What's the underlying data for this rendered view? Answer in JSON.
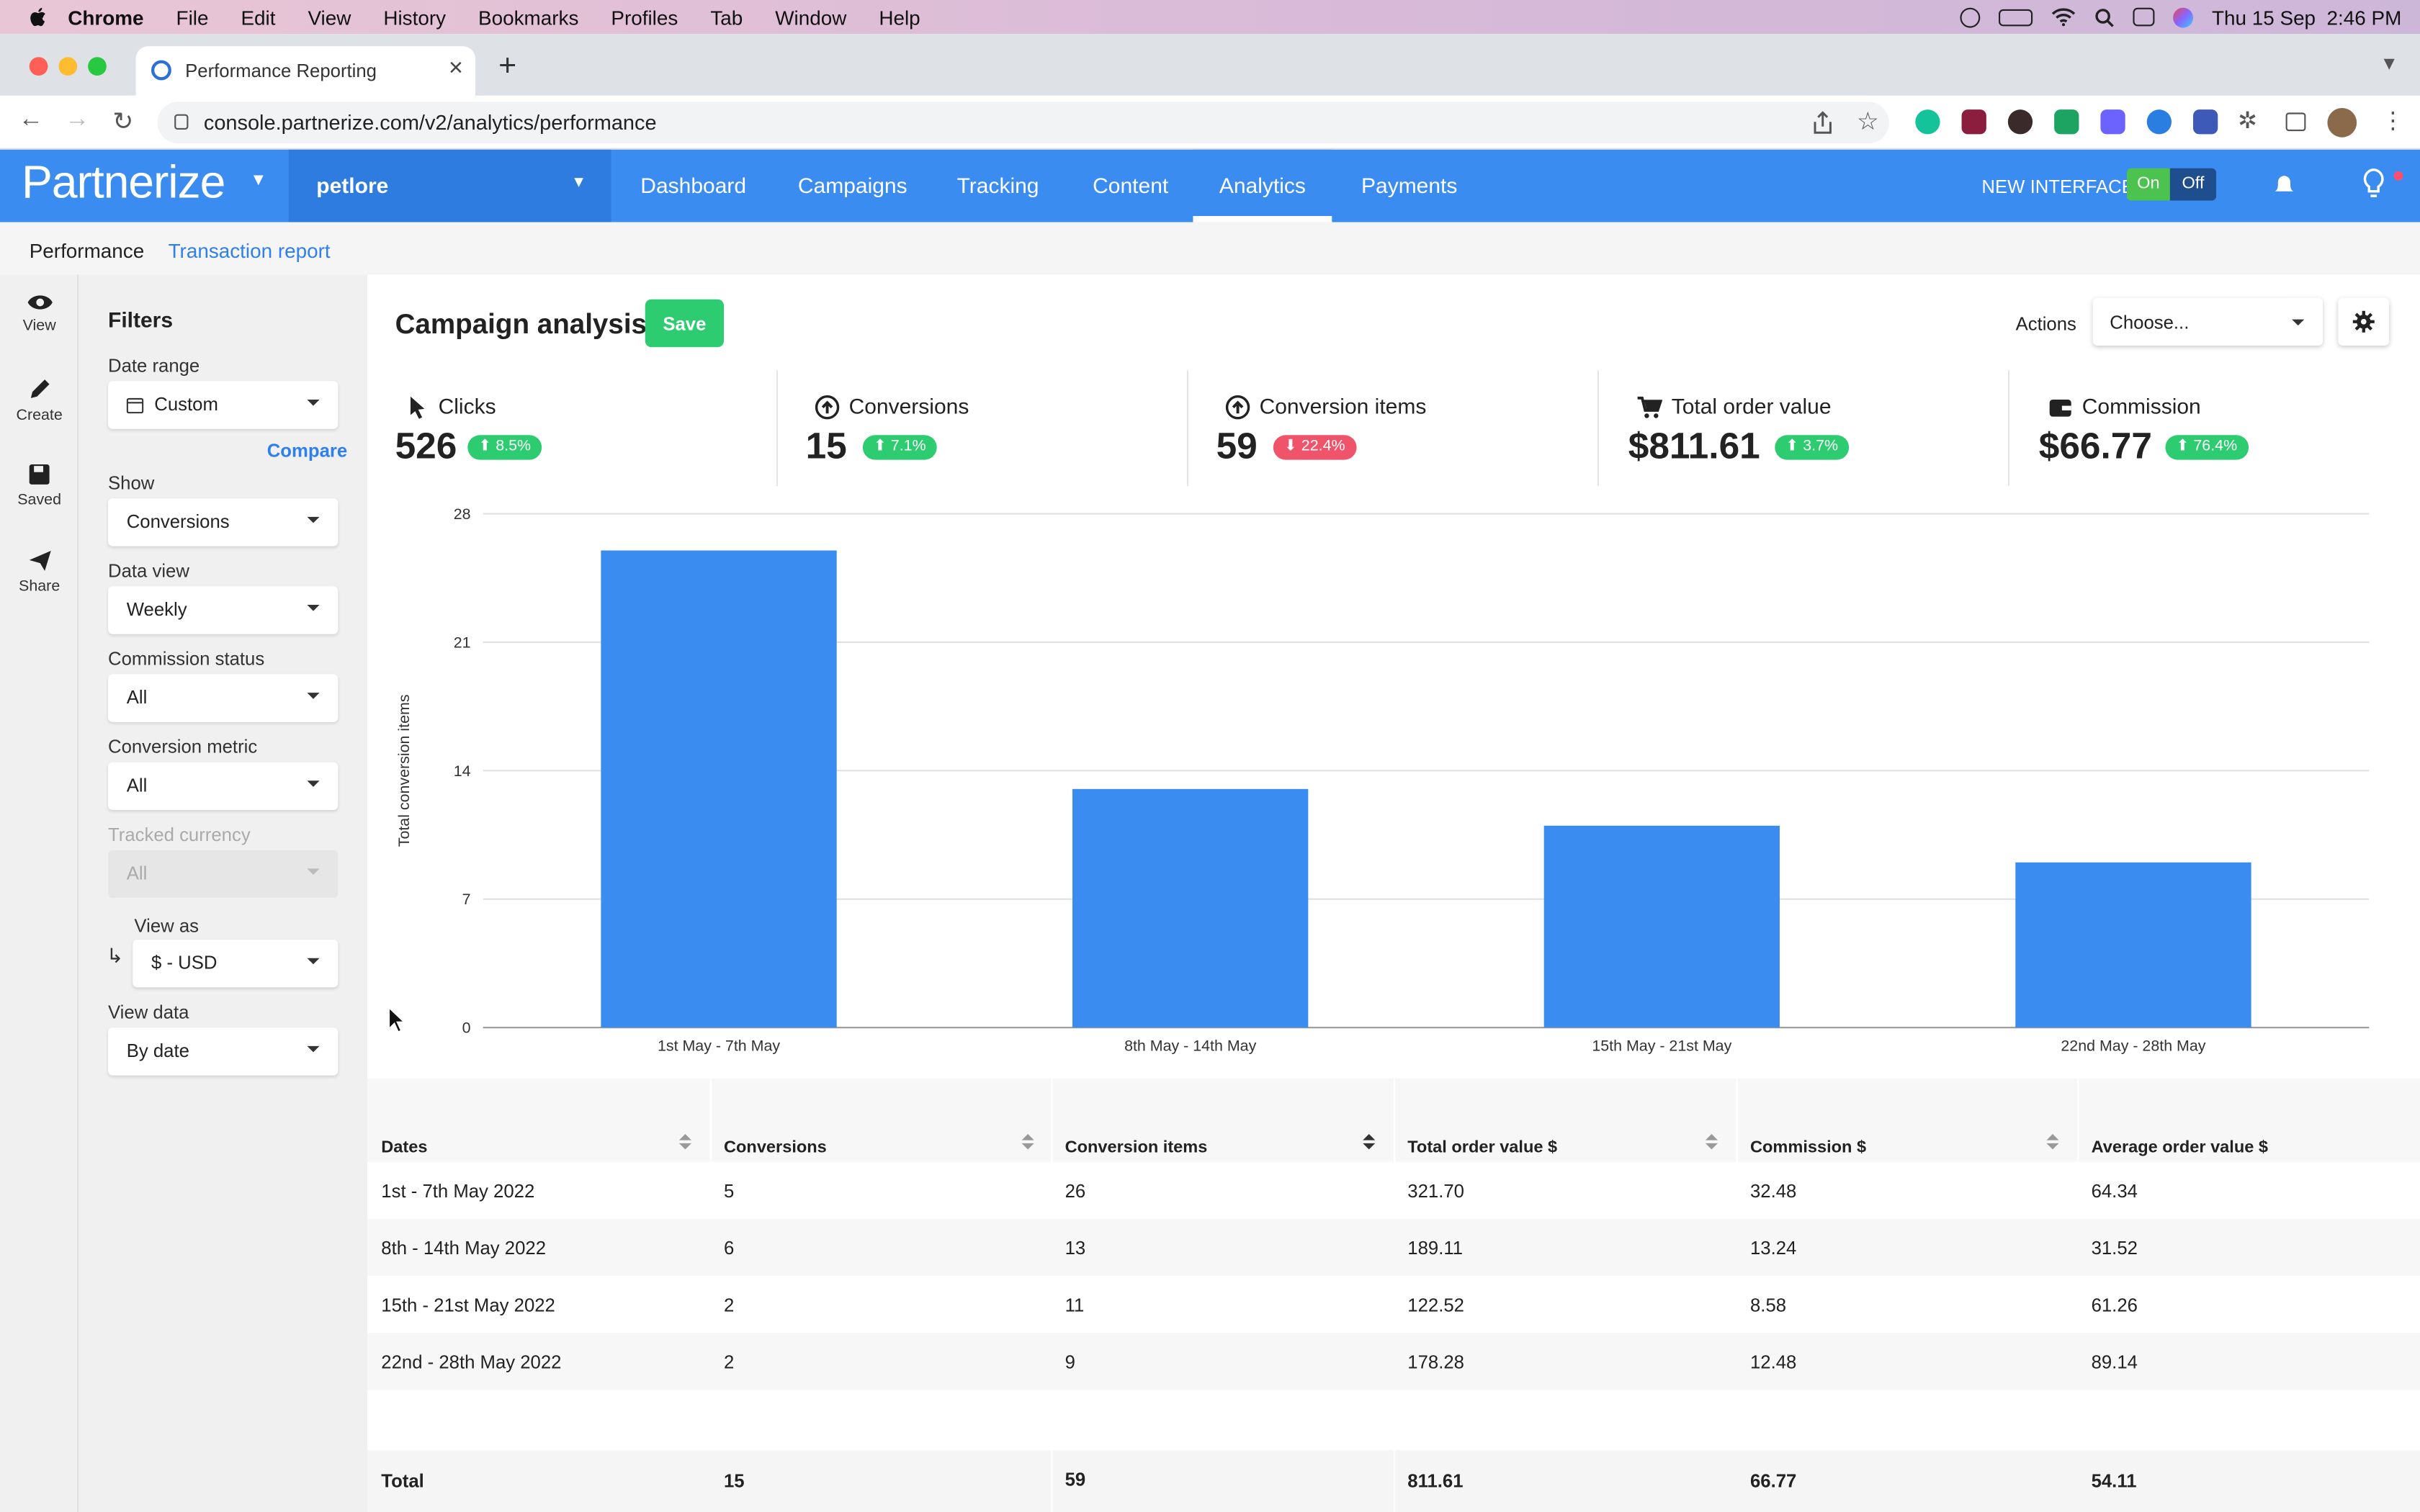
{
  "menubar": {
    "app": "Chrome",
    "items": [
      "File",
      "Edit",
      "View",
      "History",
      "Bookmarks",
      "Profiles",
      "Tab",
      "Window",
      "Help"
    ],
    "clock": "Thu 15 Sep  2:46 PM"
  },
  "browser": {
    "tab_title": "Performance Reporting",
    "url": "console.partnerize.com/v2/analytics/performance"
  },
  "app_header": {
    "logo": "Partnerize",
    "account": "petlore",
    "nav": [
      "Dashboard",
      "Campaigns",
      "Tracking",
      "Content",
      "Analytics",
      "Payments"
    ],
    "active_nav": "Analytics",
    "new_interface_label": "NEW INTERFACE",
    "toggle_on": "On",
    "toggle_off": "Off"
  },
  "subnav": {
    "performance": "Performance",
    "transaction_report": "Transaction report"
  },
  "rail": {
    "view": "View",
    "create": "Create",
    "saved": "Saved",
    "share": "Share"
  },
  "filters": {
    "title": "Filters",
    "date_range_label": "Date range",
    "date_range_value": "Custom",
    "compare": "Compare",
    "show_label": "Show",
    "show_value": "Conversions",
    "data_view_label": "Data view",
    "data_view_value": "Weekly",
    "commission_status_label": "Commission status",
    "commission_status_value": "All",
    "conversion_metric_label": "Conversion metric",
    "conversion_metric_value": "All",
    "tracked_currency_label": "Tracked currency",
    "tracked_currency_value": "All",
    "view_as_label": "View as",
    "view_as_value": "$ - USD",
    "view_data_label": "View data",
    "view_data_value": "By date"
  },
  "main": {
    "title": "Campaign analysis",
    "save": "Save",
    "actions_label": "Actions",
    "actions_value": "Choose..."
  },
  "stats": [
    {
      "label": "Clicks",
      "value": "526",
      "change": "8.5%",
      "dir": "up",
      "icon": "cursor-icon"
    },
    {
      "label": "Conversions",
      "value": "15",
      "change": "7.1%",
      "dir": "up",
      "icon": "arrow-up-circle-icon"
    },
    {
      "label": "Conversion items",
      "value": "59",
      "change": "22.4%",
      "dir": "down",
      "icon": "arrow-up-circle-icon"
    },
    {
      "label": "Total order value",
      "value": "$811.61",
      "change": "3.7%",
      "dir": "up",
      "icon": "cart-icon"
    },
    {
      "label": "Commission",
      "value": "$66.77",
      "change": "76.4%",
      "dir": "up",
      "icon": "wallet-icon"
    }
  ],
  "chart_data": {
    "type": "bar",
    "categories": [
      "1st May - 7th May",
      "8th May - 14th May",
      "15th May - 21st May",
      "22nd May - 28th May"
    ],
    "values": [
      26,
      13,
      11,
      9
    ],
    "ylabel": "Total conversion items",
    "xlabel": "",
    "ylim": [
      0,
      28
    ],
    "yticks": [
      0,
      7,
      14,
      21,
      28
    ],
    "color": "#3b8cf0",
    "grid": true
  },
  "table": {
    "headers": [
      "Dates",
      "Conversions",
      "Conversion items",
      "Total order value $",
      "Commission $",
      "Average order value $"
    ],
    "rows": [
      [
        "1st - 7th May 2022",
        "5",
        "26",
        "321.70",
        "32.48",
        "64.34"
      ],
      [
        "8th - 14th May 2022",
        "6",
        "13",
        "189.11",
        "13.24",
        "31.52"
      ],
      [
        "15th - 21st May 2022",
        "2",
        "11",
        "122.52",
        "8.58",
        "61.26"
      ],
      [
        "22nd - 28th May 2022",
        "2",
        "9",
        "178.28",
        "12.48",
        "89.14"
      ]
    ],
    "total": [
      "Total",
      "15",
      "59",
      "811.61",
      "66.77",
      "54.11"
    ]
  }
}
